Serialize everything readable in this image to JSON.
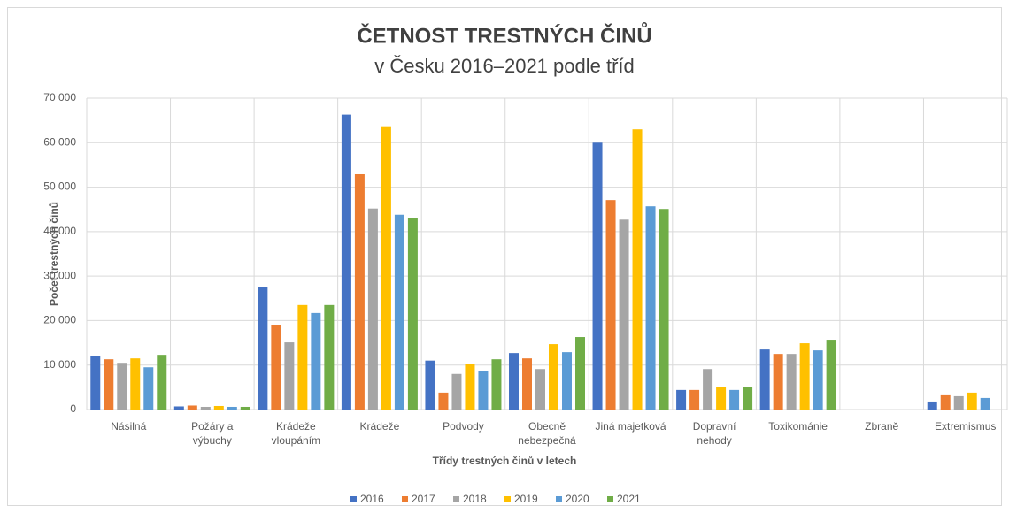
{
  "chart_data": {
    "type": "bar",
    "title": "ČETNOST TRESTNÝCH ČINŮ",
    "subtitle": "v Česku 2016–2021 podle tříd",
    "x_label": "Třídy trestných činů v letech",
    "y_label": "Počet trestných činů",
    "categories": [
      "Násilná",
      "Požáry a výbuchy",
      "Krádeže vloupáním",
      "Krádeže",
      "Podvody",
      "Obecně nebezpečná",
      "Jiná majetková",
      "Dopravní nehody",
      "Toxikománie",
      "Zbraně",
      "Extremismus"
    ],
    "series": [
      {
        "name": "2016",
        "color": "#4472c4",
        "values": [
          12100,
          700,
          27600,
          66300,
          11000,
          12700,
          60000,
          4400,
          13500,
          0,
          1800
        ]
      },
      {
        "name": "2017",
        "color": "#ed7d31",
        "values": [
          11300,
          900,
          18900,
          52900,
          3800,
          11500,
          47100,
          4400,
          12500,
          0,
          3200
        ]
      },
      {
        "name": "2018",
        "color": "#a5a5a5",
        "values": [
          10500,
          600,
          15100,
          45200,
          8000,
          9100,
          42700,
          9100,
          12500,
          0,
          3000
        ]
      },
      {
        "name": "2019",
        "color": "#ffc000",
        "values": [
          11500,
          800,
          23500,
          63500,
          10300,
          14700,
          63000,
          5000,
          14900,
          0,
          3800
        ]
      },
      {
        "name": "2020",
        "color": "#5b9bd5",
        "values": [
          9500,
          600,
          21700,
          43800,
          8600,
          12900,
          45700,
          4400,
          13300,
          0,
          2600
        ]
      },
      {
        "name": "2021",
        "color": "#70ad47",
        "values": [
          12300,
          600,
          23500,
          43000,
          11300,
          16300,
          45100,
          5000,
          15700,
          0,
          null
        ]
      }
    ],
    "ylim": [
      0,
      70000
    ],
    "yticks": [
      {
        "value": 0,
        "label": "0"
      },
      {
        "value": 10000,
        "label": "10 000"
      },
      {
        "value": 20000,
        "label": "20 000"
      },
      {
        "value": 30000,
        "label": "30 000"
      },
      {
        "value": 40000,
        "label": "40 000"
      },
      {
        "value": 50000,
        "label": "50 000"
      },
      {
        "value": 60000,
        "label": "60 000"
      },
      {
        "value": 70000,
        "label": "70 000"
      }
    ],
    "grid": true,
    "legend": "bottom"
  }
}
